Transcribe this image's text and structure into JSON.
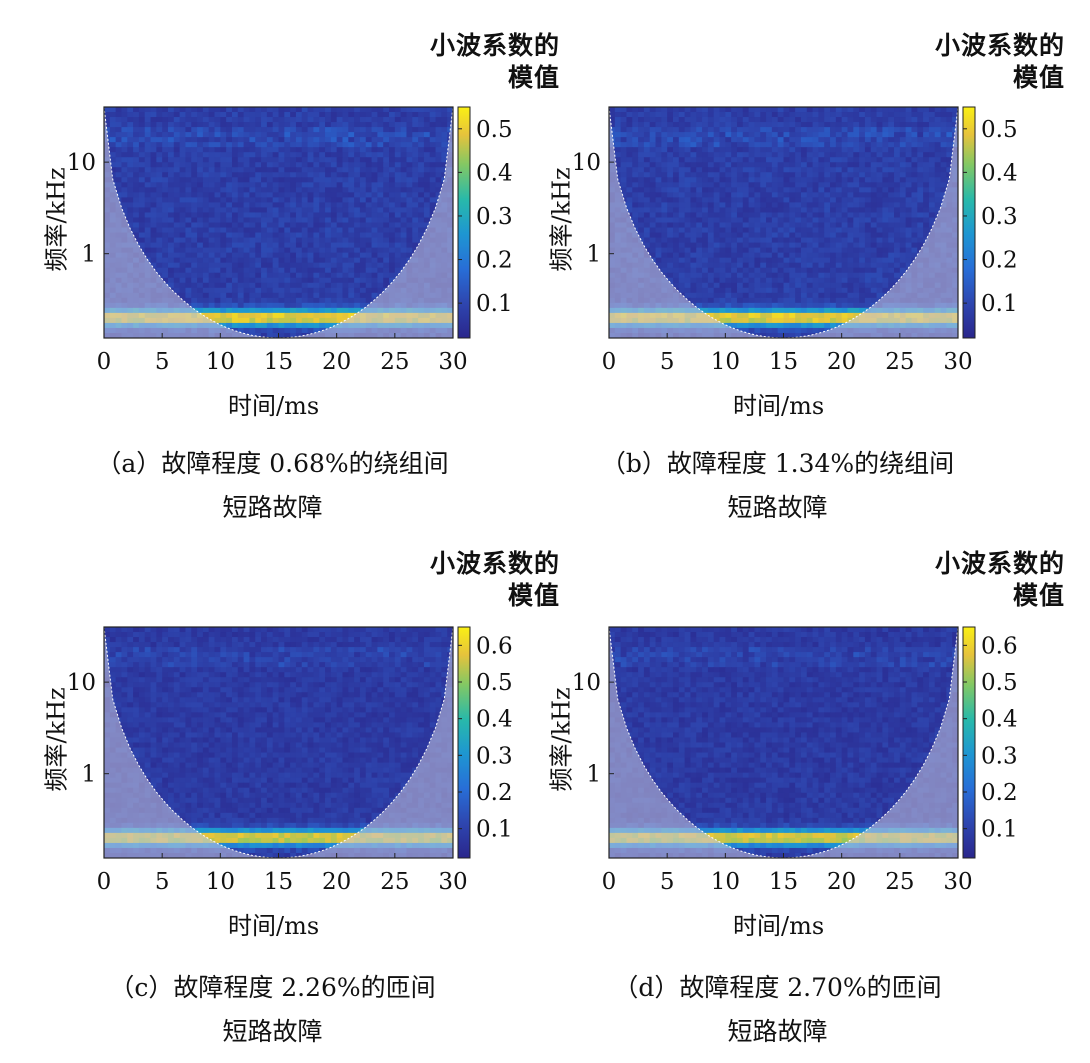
{
  "chart_data": [
    {
      "type": "heatmap",
      "panel_label": "（a）故障程度 0.68%的绕组间",
      "panel_label_line2": "短路故障",
      "colorbar_title_line1": "小波系数的",
      "colorbar_title_line2": "模值",
      "colorbar_ticks": [
        "0.1",
        "0.2",
        "0.3",
        "0.4",
        "0.5"
      ],
      "colorbar_range": [
        0.02,
        0.55
      ],
      "xlabel": "时间/ms",
      "ylabel": "频率/kHz",
      "x_ticks": [
        "0",
        "5",
        "10",
        "15",
        "20",
        "25",
        "30"
      ],
      "xlim": [
        0,
        30
      ],
      "y_ticks": [
        "10",
        "1"
      ],
      "ylim_khz": [
        0.12,
        40
      ],
      "band_center_khz": 0.2,
      "band_peak": 0.55
    },
    {
      "type": "heatmap",
      "panel_label": "（b）故障程度 1.34%的绕组间",
      "panel_label_line2": "短路故障",
      "colorbar_title_line1": "小波系数的",
      "colorbar_title_line2": "模值",
      "colorbar_ticks": [
        "0.1",
        "0.2",
        "0.3",
        "0.4",
        "0.5"
      ],
      "colorbar_range": [
        0.02,
        0.55
      ],
      "xlabel": "时间/ms",
      "ylabel": "频率/kHz",
      "x_ticks": [
        "0",
        "5",
        "10",
        "15",
        "20",
        "25",
        "30"
      ],
      "xlim": [
        0,
        30
      ],
      "y_ticks": [
        "10",
        "1"
      ],
      "ylim_khz": [
        0.12,
        40
      ],
      "band_center_khz": 0.2,
      "band_peak": 0.55
    },
    {
      "type": "heatmap",
      "panel_label": "（c）故障程度 2.26%的匝间",
      "panel_label_line2": "短路故障",
      "colorbar_title_line1": "小波系数的",
      "colorbar_title_line2": "模值",
      "colorbar_ticks": [
        "0.1",
        "0.2",
        "0.3",
        "0.4",
        "0.5",
        "0.6"
      ],
      "colorbar_range": [
        0.02,
        0.65
      ],
      "xlabel": "时间/ms",
      "ylabel": "频率/kHz",
      "x_ticks": [
        "0",
        "5",
        "10",
        "15",
        "20",
        "25",
        "30"
      ],
      "xlim": [
        0,
        30
      ],
      "y_ticks": [
        "10",
        "1"
      ],
      "ylim_khz": [
        0.12,
        40
      ],
      "band_center_khz": 0.2,
      "band_peak": 0.62
    },
    {
      "type": "heatmap",
      "panel_label": "（d）故障程度 2.70%的匝间",
      "panel_label_line2": "短路故障",
      "colorbar_title_line1": "小波系数的",
      "colorbar_title_line2": "模值",
      "colorbar_ticks": [
        "0.1",
        "0.2",
        "0.3",
        "0.4",
        "0.5",
        "0.6"
      ],
      "colorbar_range": [
        0.02,
        0.65
      ],
      "xlabel": "时间/ms",
      "ylabel": "频率/kHz",
      "x_ticks": [
        "0",
        "5",
        "10",
        "15",
        "20",
        "25",
        "30"
      ],
      "xlim": [
        0,
        30
      ],
      "y_ticks": [
        "10",
        "1"
      ],
      "ylim_khz": [
        0.12,
        40
      ],
      "band_center_khz": 0.2,
      "band_peak": 0.62
    }
  ],
  "colors": {
    "low": "#2a3b8f",
    "mid": "#3a9fd0",
    "high": "#f5e72a",
    "cone_overlay": "#c9c6de"
  }
}
